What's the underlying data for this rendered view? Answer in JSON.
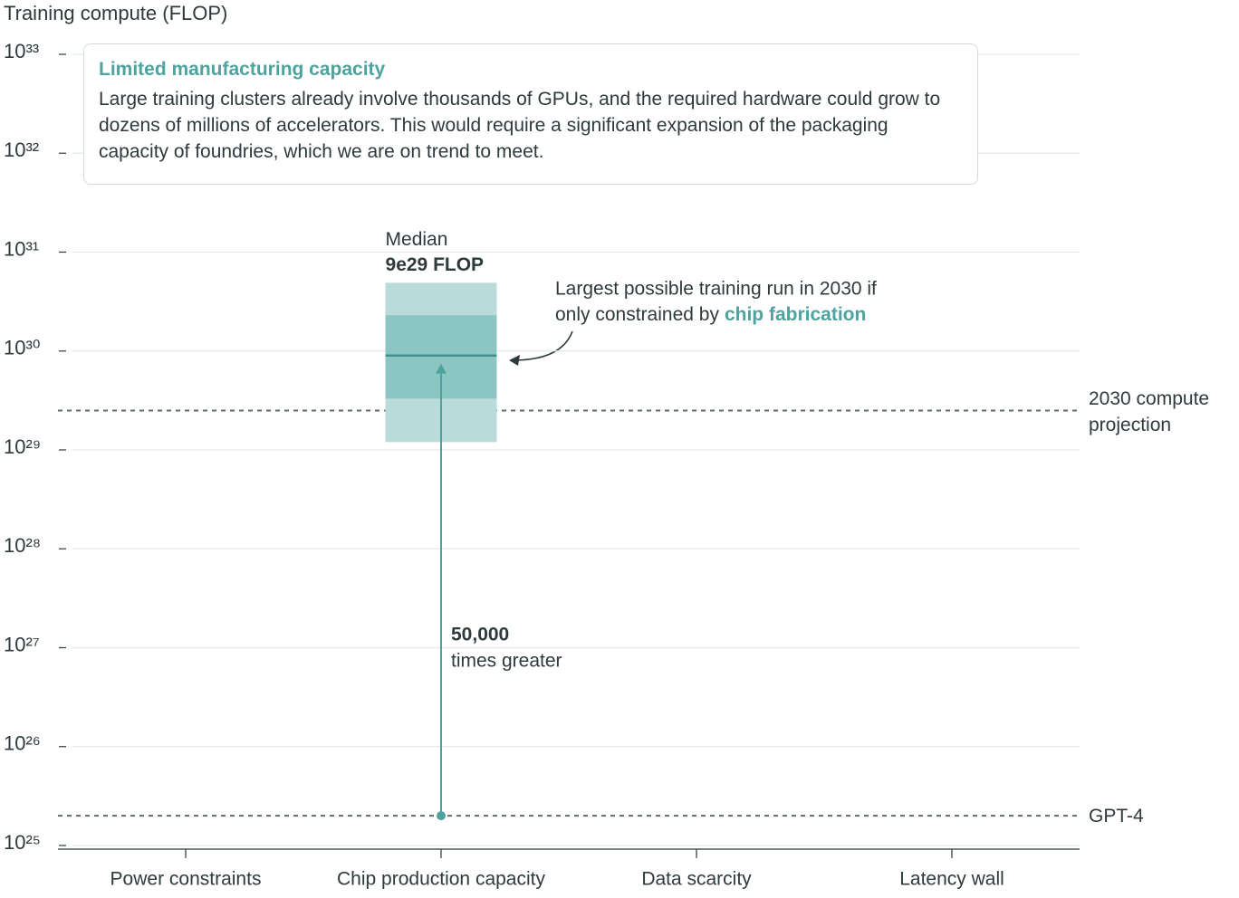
{
  "chart_data": {
    "type": "range-box",
    "title": "Training compute (FLOP)",
    "log_scale": true,
    "grid": true,
    "categories": [
      "Power constraints",
      "Chip production capacity",
      "Data scarcity",
      "Latency wall"
    ],
    "values": [
      null,
      9e+29,
      null,
      null
    ],
    "value_labels": [
      null,
      "9e29 FLOP",
      null,
      null
    ],
    "median_label": "Median",
    "outer_low": [
      null,
      1.2e+29,
      null,
      null
    ],
    "outer_high": [
      null,
      4.9e+30,
      null,
      null
    ],
    "inner_low": [
      null,
      3.3e+29,
      null,
      null
    ],
    "inner_high": [
      null,
      2.3e+30,
      null,
      null
    ],
    "colors": {
      "outer": "#b9dcda",
      "inner": "#8cc6c3",
      "median": "#3f918d",
      "accent": "#4ea39f",
      "reference": "#5f6b6d"
    },
    "ylim": [
      1e+25,
      1e+33
    ],
    "yticks": [
      {
        "value": 1e+25,
        "label": "10²⁵"
      },
      {
        "value": 1e+26,
        "label": "10²⁶"
      },
      {
        "value": 1e+27,
        "label": "10²⁷"
      },
      {
        "value": 1e+28,
        "label": "10²⁸"
      },
      {
        "value": 1e+29,
        "label": "10²⁹"
      },
      {
        "value": 1e+30,
        "label": "10³⁰"
      },
      {
        "value": 1e+31,
        "label": "10³¹"
      },
      {
        "value": 1e+32,
        "label": "10³²"
      },
      {
        "value": 1e+33,
        "label": "10³³"
      }
    ],
    "reference_lines": [
      {
        "label": "2030 compute projection",
        "value": 2.5e+29
      },
      {
        "label": "GPT-4",
        "value": 2e+25
      }
    ],
    "multiplier_label": "50,000",
    "multiplier_text": "times greater",
    "annotation": {
      "lines": [
        "Largest possible training run in 2030 if",
        "only constrained by"
      ],
      "highlight": "chip fabrication"
    },
    "callout": {
      "title": "Limited manufacturing capacity",
      "text": "Large training clusters already involve thousands of GPUs, and the required hardware could grow to dozens of millions of accelerators. This would require a significant expansion of the packaging capacity of foundries, which we are on trend to meet."
    }
  }
}
